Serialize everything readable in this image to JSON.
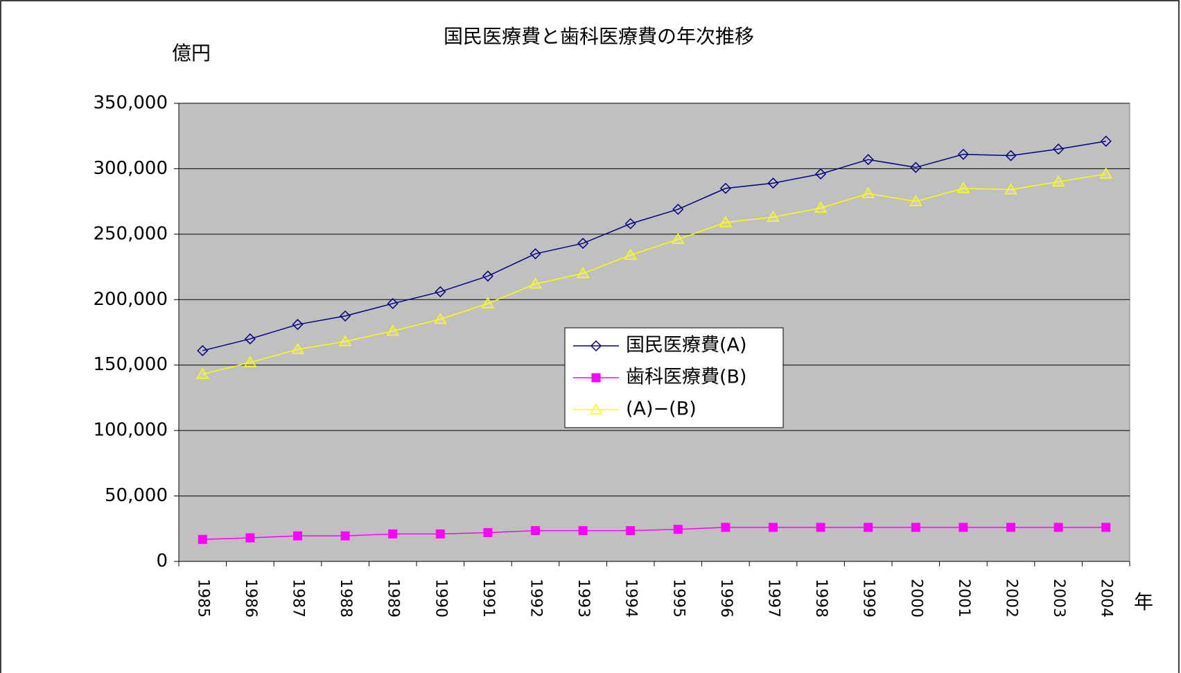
{
  "chart_data": {
    "type": "line",
    "title": "国民医療費と歯科医療費の年次推移",
    "y_label": "億円",
    "x_label": "年",
    "categories": [
      "1985",
      "1986",
      "1987",
      "1988",
      "1989",
      "1990",
      "1991",
      "1992",
      "1993",
      "1994",
      "1995",
      "1996",
      "1997",
      "1998",
      "1999",
      "2000",
      "2001",
      "2002",
      "2003",
      "2004"
    ],
    "series": [
      {
        "name": "国民医療費(A)",
        "color": "#000080",
        "marker": "diamond",
        "values": [
          161000,
          170000,
          181000,
          187500,
          197000,
          206000,
          218000,
          235000,
          243000,
          258000,
          269000,
          285000,
          289000,
          296000,
          307000,
          301000,
          311000,
          310000,
          315000,
          321000
        ]
      },
      {
        "name": "歯科医療費(B)",
        "color": "#ff00ff",
        "marker": "square",
        "values": [
          16800,
          18000,
          19500,
          19500,
          21000,
          21000,
          22000,
          23500,
          23500,
          23500,
          24500,
          26000,
          26000,
          26000,
          26000,
          26000,
          26000,
          26000,
          26000,
          26000
        ]
      },
      {
        "name": "(A)−(B)",
        "color": "#ffff00",
        "marker": "triangle",
        "values": [
          143000,
          152000,
          162000,
          168000,
          176000,
          185000,
          197000,
          212000,
          220000,
          234000,
          246000,
          259000,
          263000,
          270000,
          281000,
          275000,
          285000,
          284000,
          290000,
          296000
        ]
      }
    ],
    "ylim": [
      0,
      350000
    ],
    "yticks": [
      0,
      {
        "value": 50000,
        "label": "50,000"
      },
      {
        "value": 100000,
        "label": "100,000"
      },
      {
        "value": 150000,
        "label": "150,000"
      },
      {
        "value": 200000,
        "label": "200,000"
      },
      {
        "value": 250000,
        "label": "250,000"
      },
      {
        "value": 300000,
        "label": "300,000"
      },
      {
        "value": 350000,
        "label": "350,000"
      }
    ],
    "grid": true,
    "legend": "center"
  }
}
